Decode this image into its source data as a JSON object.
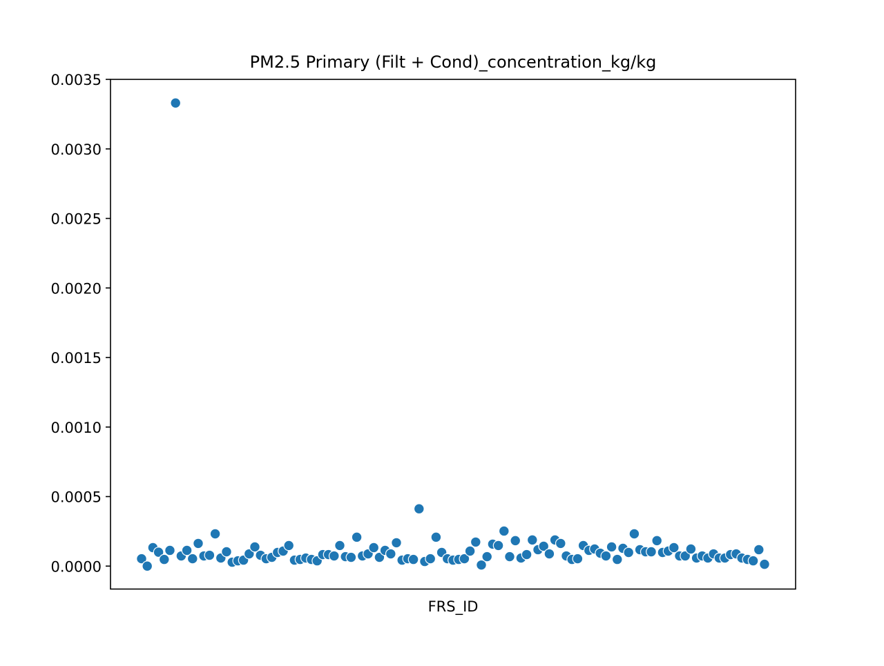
{
  "chart_data": {
    "type": "scatter",
    "title": "PM2.5 Primary (Filt + Cond)_concentration_kg/kg",
    "xlabel": "FRS_ID",
    "ylabel": "",
    "x_ticks_shown": false,
    "ylim": [
      -0.000165,
      0.0035
    ],
    "yticks": [
      0.0,
      0.0005,
      0.001,
      0.0015,
      0.002,
      0.0025,
      0.003,
      0.0035
    ],
    "ytick_labels": [
      "0.0000",
      "0.0005",
      "0.0010",
      "0.0015",
      "0.0020",
      "0.0025",
      "0.0030",
      "0.0035"
    ],
    "grid": false,
    "marker_color": "#1f77b4",
    "marker_edge_color": "#ffffff",
    "series": [
      {
        "values": [
          5.3e-05,
          0.0,
          0.000133,
          0.0001,
          4.8e-05,
          0.000113,
          0.00333,
          7.3e-05,
          0.000113,
          5.3e-05,
          0.000163,
          7.3e-05,
          7.8e-05,
          0.000232,
          5.8e-05,
          0.000103,
          2.8e-05,
          3.8e-05,
          4.3e-05,
          8.8e-05,
          0.000138,
          7.8e-05,
          5.3e-05,
          6.3e-05,
          9.8e-05,
          0.000108,
          0.000148,
          4.3e-05,
          4.8e-05,
          5.8e-05,
          4.8e-05,
          3.8e-05,
          8.3e-05,
          8.3e-05,
          7.3e-05,
          0.000148,
          6.8e-05,
          6.3e-05,
          0.000208,
          7.3e-05,
          8.8e-05,
          0.000133,
          6.3e-05,
          0.000113,
          8.8e-05,
          0.000168,
          4.3e-05,
          5.3e-05,
          4.8e-05,
          0.000412,
          3.3e-05,
          5.3e-05,
          0.000208,
          9.8e-05,
          5.3e-05,
          4.3e-05,
          4.8e-05,
          5.3e-05,
          0.000108,
          0.000173,
          8e-06,
          6.8e-05,
          0.000158,
          0.000148,
          0.000252,
          6.8e-05,
          0.000183,
          5.8e-05,
          8.3e-05,
          0.000188,
          0.000118,
          0.000143,
          8.8e-05,
          0.000188,
          0.000163,
          7.3e-05,
          4.8e-05,
          5.3e-05,
          0.000148,
          0.000113,
          0.000123,
          9.3e-05,
          7.3e-05,
          0.000138,
          4.8e-05,
          0.000128,
          9.8e-05,
          0.000232,
          0.000118,
          0.000103,
          0.000103,
          0.000183,
          9.8e-05,
          0.000108,
          0.000133,
          7.3e-05,
          7.3e-05,
          0.000123,
          5.8e-05,
          7.3e-05,
          5.8e-05,
          8.8e-05,
          5.8e-05,
          5.8e-05,
          8.3e-05,
          8.8e-05,
          5.8e-05,
          4.8e-05,
          3.8e-05,
          0.000118,
          1.3e-05
        ]
      }
    ]
  }
}
